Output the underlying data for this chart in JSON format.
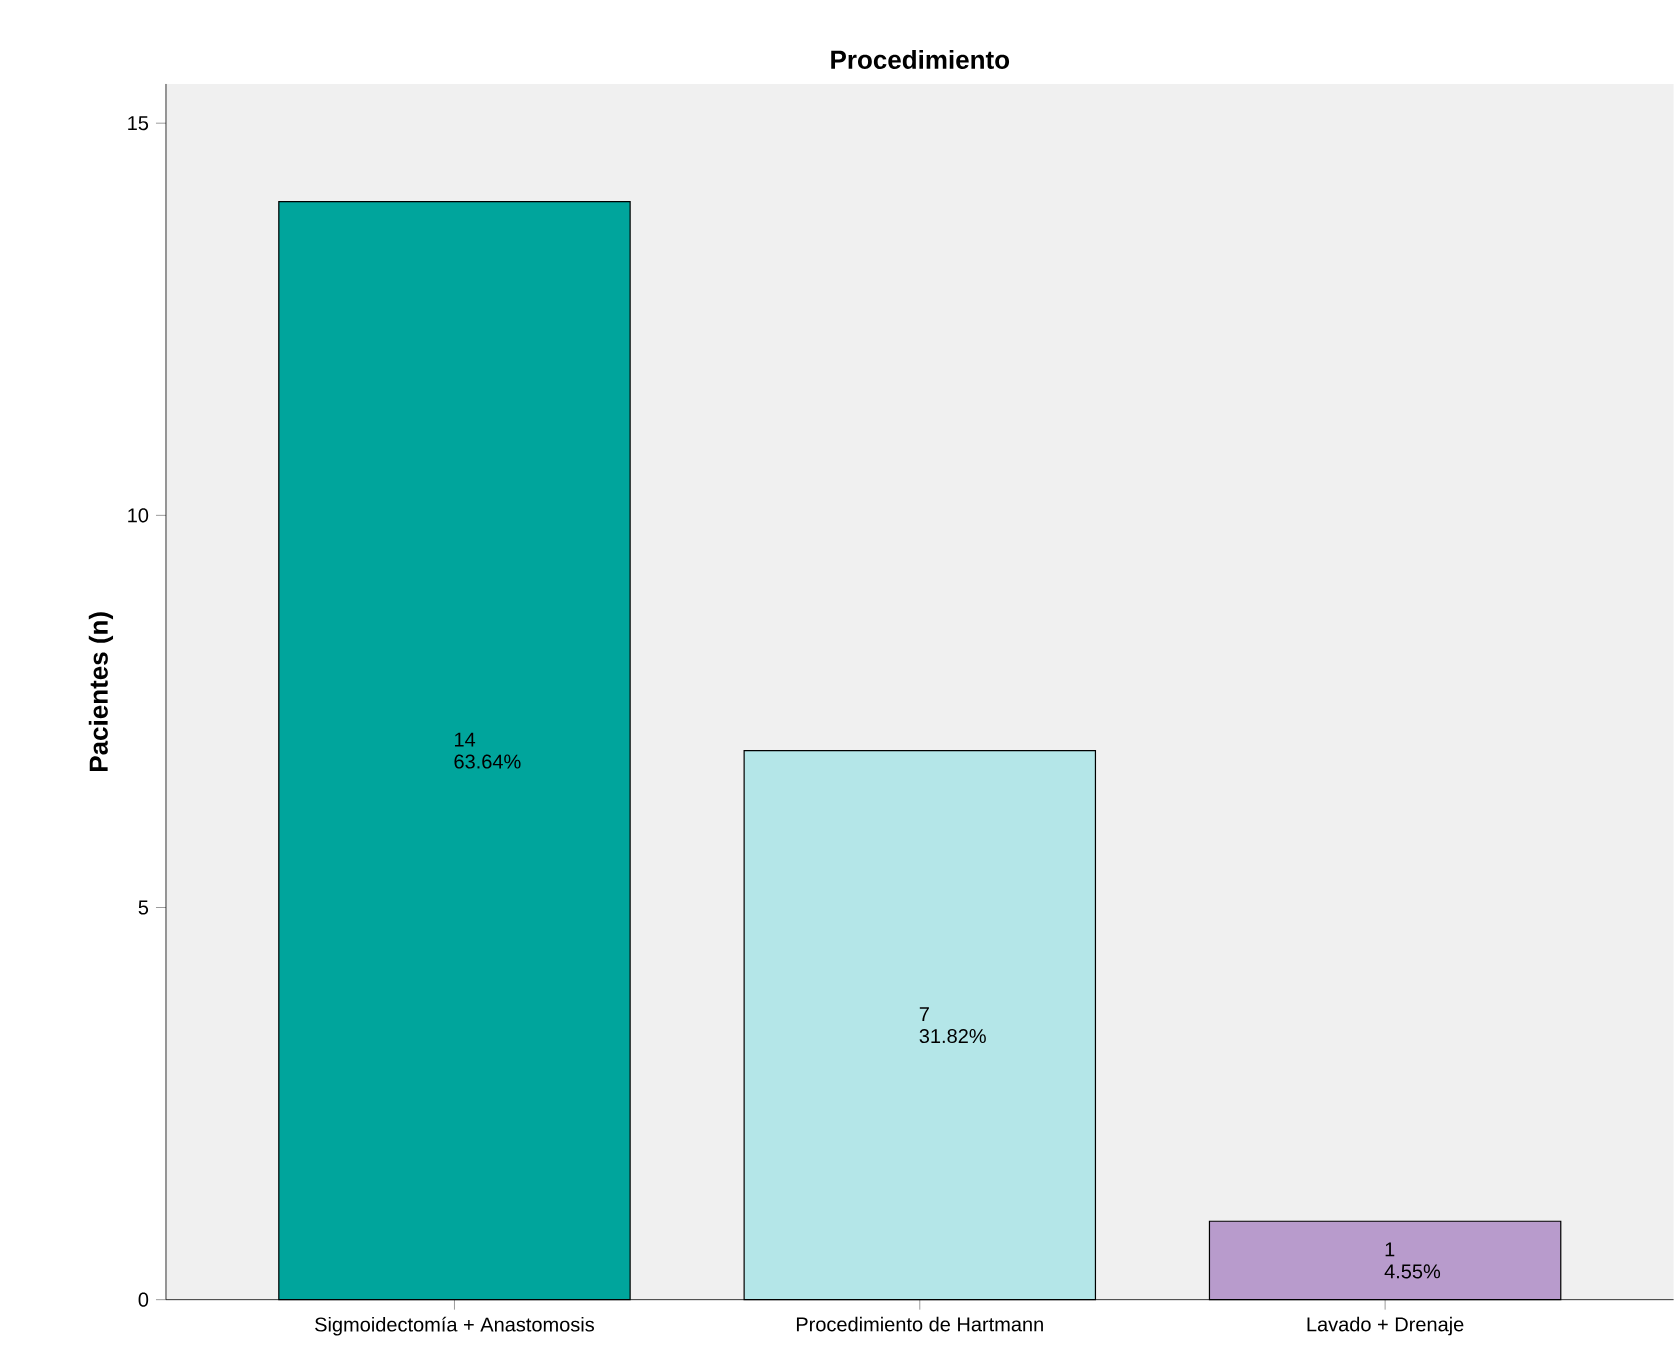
{
  "chart_data": {
    "type": "bar",
    "title": "Procedimiento",
    "ylabel": "Pacientes (n)",
    "categories": [
      "Sigmoidectomía + Anastomosis",
      "Procedimiento de Hartmann",
      "Lavado + Drenaje"
    ],
    "values": [
      14,
      7,
      1
    ],
    "colors": [
      "#00a59c",
      "#b4e6e8",
      "#b89bcc"
    ],
    "value_labels": [
      "14 63.64%",
      "7 31.82%",
      "1 4.55%"
    ],
    "ylim": [
      0,
      15.5
    ],
    "yticks": [
      0,
      5,
      10,
      15
    ],
    "grid": false
  }
}
